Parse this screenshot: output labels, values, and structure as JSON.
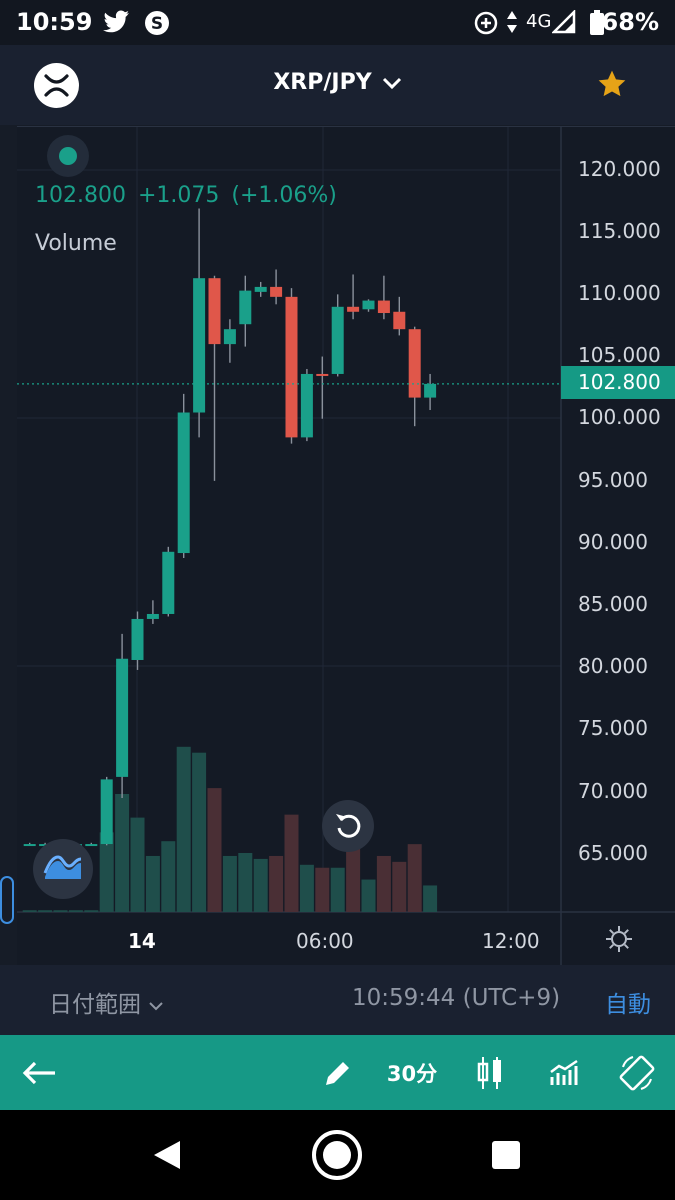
{
  "status_bar": {
    "time": "10:59",
    "network": "4G",
    "battery": "68%"
  },
  "header": {
    "pair": "XRP/JPY",
    "logo_icon": "xrp-logo-icon",
    "favorite_icon": "star-icon",
    "favorite_color": "#e6a317"
  },
  "legend": {
    "price": "102.800",
    "change": "+1.075",
    "change_pct": "(+1.06%)",
    "volume_label": "Volume"
  },
  "price_badge": "102.800",
  "chart_data": {
    "type": "candlestick",
    "y_ticks": [
      "120.000",
      "115.000",
      "110.000",
      "105.000",
      "100.000",
      "95.000",
      "90.000",
      "85.000",
      "80.000",
      "75.000",
      "70.000",
      "65.000"
    ],
    "x_ticks": [
      "14",
      "06:00",
      "12:00"
    ],
    "ylim": [
      60,
      124
    ],
    "current_price": 102.8,
    "colors": {
      "up": "#1aa08a",
      "down": "#e0574a",
      "vol_up": "#1f4e4b",
      "vol_down": "#4a2f35",
      "grid": "#202838"
    },
    "candles": [
      {
        "o": 65.8,
        "h": 65.9,
        "l": 65.7,
        "c": 65.8,
        "v": 0.3
      },
      {
        "o": 65.8,
        "h": 65.9,
        "l": 65.7,
        "c": 65.8,
        "v": 0.3
      },
      {
        "o": 65.8,
        "h": 65.9,
        "l": 65.7,
        "c": 65.8,
        "v": 0.3
      },
      {
        "o": 65.8,
        "h": 65.9,
        "l": 65.7,
        "c": 65.8,
        "v": 0.3
      },
      {
        "o": 65.8,
        "h": 65.9,
        "l": 65.7,
        "c": 65.8,
        "v": 0.3
      },
      {
        "o": 65.8,
        "h": 71.2,
        "l": 65.7,
        "c": 71.0,
        "v": 13.5
      },
      {
        "o": 71.2,
        "h": 82.7,
        "l": 69.5,
        "c": 80.7,
        "v": 20.0
      },
      {
        "o": 80.6,
        "h": 84.5,
        "l": 79.8,
        "c": 83.9,
        "v": 16.0
      },
      {
        "o": 83.9,
        "h": 85.4,
        "l": 83.5,
        "c": 84.3,
        "v": 9.5
      },
      {
        "o": 84.3,
        "h": 89.7,
        "l": 84.1,
        "c": 89.3,
        "v": 12.0
      },
      {
        "o": 89.2,
        "h": 102.0,
        "l": 88.8,
        "c": 100.5,
        "v": 28.0
      },
      {
        "o": 100.5,
        "h": 116.9,
        "l": 98.5,
        "c": 111.3,
        "v": 27.0
      },
      {
        "o": 111.3,
        "h": 111.5,
        "l": 95.0,
        "c": 106.0,
        "v": 21.0,
        "down": true
      },
      {
        "o": 106.0,
        "h": 108.0,
        "l": 104.5,
        "c": 107.2,
        "v": 9.5
      },
      {
        "o": 107.6,
        "h": 111.5,
        "l": 105.8,
        "c": 110.3,
        "v": 10.0
      },
      {
        "o": 110.2,
        "h": 111.0,
        "l": 109.8,
        "c": 110.6,
        "v": 9.0
      },
      {
        "o": 110.6,
        "h": 112.0,
        "l": 109.2,
        "c": 109.8,
        "v": 9.5,
        "down": true
      },
      {
        "o": 109.8,
        "h": 110.5,
        "l": 98.0,
        "c": 98.5,
        "v": 16.5,
        "down": true
      },
      {
        "o": 98.5,
        "h": 104.0,
        "l": 98.2,
        "c": 103.6,
        "v": 8.0
      },
      {
        "o": 103.6,
        "h": 105.0,
        "l": 100.0,
        "c": 103.5,
        "v": 7.5,
        "down": true
      },
      {
        "o": 103.6,
        "h": 110.0,
        "l": 103.4,
        "c": 109.0,
        "v": 7.5
      },
      {
        "o": 109.0,
        "h": 111.6,
        "l": 108.0,
        "c": 108.6,
        "v": 12.0,
        "down": true
      },
      {
        "o": 108.8,
        "h": 109.6,
        "l": 108.6,
        "c": 109.5,
        "v": 5.5
      },
      {
        "o": 109.5,
        "h": 111.5,
        "l": 108.0,
        "c": 108.5,
        "v": 9.5,
        "down": true
      },
      {
        "o": 108.6,
        "h": 109.8,
        "l": 106.7,
        "c": 107.2,
        "v": 8.5,
        "down": true
      },
      {
        "o": 107.2,
        "h": 107.4,
        "l": 99.4,
        "c": 101.7,
        "v": 11.5,
        "down": true
      },
      {
        "o": 101.7,
        "h": 103.6,
        "l": 100.7,
        "c": 102.8,
        "v": 4.5
      }
    ]
  },
  "controls": {
    "reset_icon": "reset-zoom-icon",
    "indicator_icon": "indicator-icon",
    "settings_icon": "settings-icon"
  },
  "range_bar": {
    "label": "日付範囲",
    "time": "10:59:44 (UTC+9)",
    "auto": "自動"
  },
  "toolbar": {
    "back_icon": "back-arrow-icon",
    "draw_icon": "pencil-icon",
    "interval": "30分",
    "candle_icon": "candlestick-icon",
    "indicators_icon": "indicators-icon",
    "rotate_icon": "rotate-screen-icon"
  },
  "nav": {
    "back": "nav-back-icon",
    "home": "nav-home-icon",
    "recents": "nav-recents-icon"
  }
}
